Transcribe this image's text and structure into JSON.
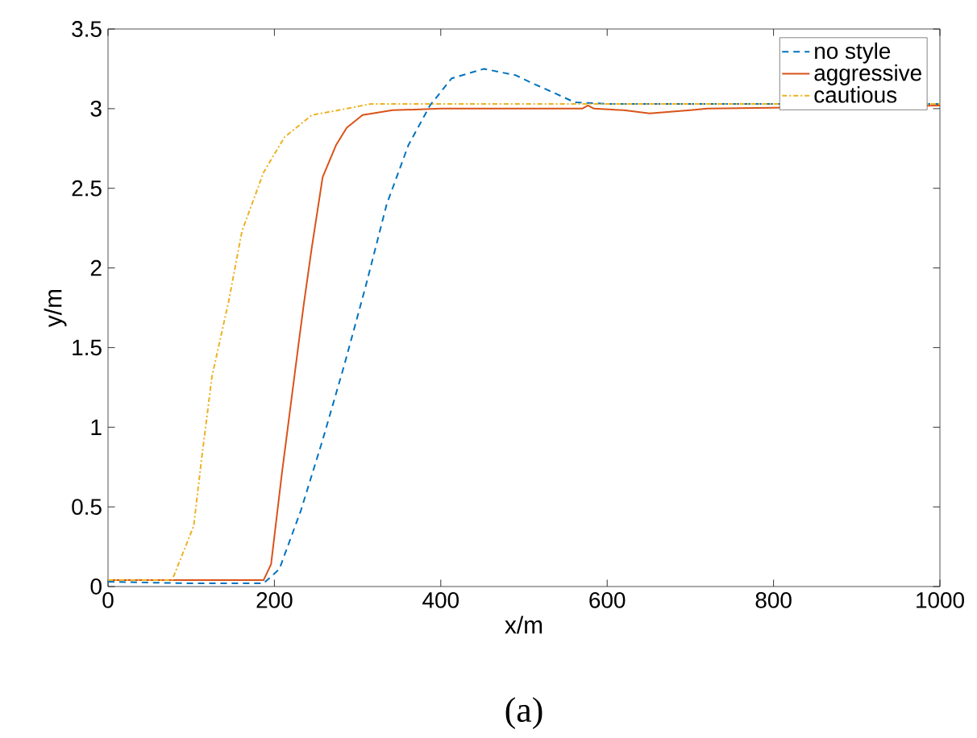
{
  "chart_data": {
    "type": "line",
    "xlabel": "x/m",
    "ylabel": "y/m",
    "annotations": [
      "(a)"
    ],
    "xlim": [
      0,
      1000
    ],
    "ylim": [
      0,
      3.5
    ],
    "xticks": [
      0,
      200,
      400,
      600,
      800,
      1000
    ],
    "yticks": [
      0,
      0.5,
      1,
      1.5,
      2,
      2.5,
      3,
      3.5
    ],
    "grid": false,
    "legend": "top right",
    "marker": "none",
    "series": [
      {
        "name": "no style",
        "color": "#0072bd",
        "line_style": "dashed",
        "x": [
          0,
          100,
          187,
          206,
          232,
          258,
          284,
          310,
          335,
          361,
          387,
          413,
          452,
          490,
          510,
          523,
          561,
          600,
          650,
          700,
          720,
          1000
        ],
        "values": [
          0.03,
          0.02,
          0.02,
          0.11,
          0.48,
          0.92,
          1.39,
          1.89,
          2.4,
          2.77,
          3.02,
          3.19,
          3.25,
          3.21,
          3.16,
          3.13,
          3.04,
          3.03,
          3.03,
          3.03,
          3.03,
          3.03
        ]
      },
      {
        "name": "aggressive",
        "color": "#d95319",
        "line_style": "solid",
        "x": [
          0,
          100,
          187,
          196,
          209,
          229,
          235,
          245,
          258,
          274,
          287,
          306,
          342,
          400,
          500,
          570,
          577,
          584,
          620,
          651,
          700,
          720,
          1000
        ],
        "values": [
          0.04,
          0.04,
          0.04,
          0.14,
          0.71,
          1.52,
          1.76,
          2.13,
          2.57,
          2.77,
          2.88,
          2.96,
          2.99,
          3.0,
          3.0,
          3.0,
          3.02,
          3.0,
          2.99,
          2.97,
          2.99,
          3.0,
          3.02
        ]
      },
      {
        "name": "cautious",
        "color": "#edb120",
        "line_style": "dashdotted",
        "x": [
          0,
          77,
          103,
          112,
          125,
          145,
          161,
          187,
          212,
          245,
          277,
          316,
          400,
          500,
          600,
          720,
          1000
        ],
        "values": [
          0.04,
          0.04,
          0.38,
          0.78,
          1.32,
          1.79,
          2.23,
          2.6,
          2.82,
          2.96,
          2.99,
          3.03,
          3.03,
          3.03,
          3.03,
          3.03,
          3.03
        ]
      }
    ]
  }
}
